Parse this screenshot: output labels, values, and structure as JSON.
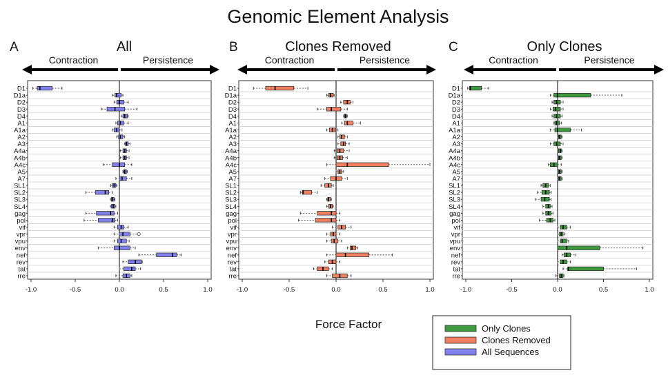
{
  "title": "Genomic Element Analysis",
  "xlabel": "Force Factor",
  "legend": [
    {
      "label": "Only Clones",
      "color": "#3f9a3f"
    },
    {
      "label": "Clones Removed",
      "color": "#f08060"
    },
    {
      "label": "All Sequences",
      "color": "#8080f0"
    }
  ],
  "chart_data": [
    {
      "type": "box",
      "panel": "A",
      "title": "All",
      "left_label": "Contraction",
      "right_label": "Persistence",
      "color": "#8080f0",
      "xlim": [
        -1.0,
        1.0
      ],
      "xticks": [
        "-1.0",
        "-0.5",
        "0.0",
        "0.5",
        "1.0"
      ],
      "grid": true,
      "categories": [
        "D1",
        "D1a",
        "D2",
        "D3",
        "D4",
        "A1",
        "A1a",
        "A2",
        "A3",
        "A4a",
        "A4b",
        "A4c",
        "A5",
        "A7",
        "SL1",
        "SL2",
        "SL3",
        "SL4",
        "gag",
        "pol",
        "vif",
        "vpr",
        "vpu",
        "env",
        "nef",
        "rev",
        "tat",
        "rre"
      ],
      "boxes": [
        {
          "wlo": -0.98,
          "q1": -0.93,
          "med": -0.9,
          "q3": -0.76,
          "whi": -0.65
        },
        {
          "wlo": -0.08,
          "q1": -0.05,
          "med": -0.03,
          "q3": 0.02,
          "whi": 0.04
        },
        {
          "wlo": -0.06,
          "q1": -0.03,
          "med": 0.0,
          "q3": 0.05,
          "whi": 0.1
        },
        {
          "wlo": -0.2,
          "q1": -0.14,
          "med": -0.05,
          "q3": 0.06,
          "whi": 0.2
        },
        {
          "wlo": 0.02,
          "q1": 0.04,
          "med": 0.06,
          "q3": 0.09,
          "whi": 0.1
        },
        {
          "wlo": -0.04,
          "q1": -0.02,
          "med": 0.01,
          "q3": 0.05,
          "whi": 0.1
        },
        {
          "wlo": -0.08,
          "q1": -0.06,
          "med": -0.03,
          "q3": 0.0,
          "whi": 0.03
        },
        {
          "wlo": -0.03,
          "q1": -0.01,
          "med": 0.01,
          "q3": 0.04,
          "whi": 0.06
        },
        {
          "wlo": 0.06,
          "q1": 0.07,
          "med": 0.08,
          "q3": 0.1,
          "whi": 0.12
        },
        {
          "wlo": 0.01,
          "q1": 0.04,
          "med": 0.06,
          "q3": 0.08,
          "whi": 0.11
        },
        {
          "wlo": 0.01,
          "q1": 0.04,
          "med": 0.06,
          "q3": 0.08,
          "whi": 0.11
        },
        {
          "wlo": -0.18,
          "q1": -0.08,
          "med": 0.0,
          "q3": 0.06,
          "whi": 0.14
        },
        {
          "wlo": 0.04,
          "q1": 0.05,
          "med": 0.06,
          "q3": 0.08,
          "whi": 0.09
        },
        {
          "wlo": -0.04,
          "q1": 0.0,
          "med": 0.03,
          "q3": 0.08,
          "whi": 0.14
        },
        {
          "wlo": -0.1,
          "q1": -0.08,
          "med": -0.06,
          "q3": -0.04,
          "whi": -0.03
        },
        {
          "wlo": -0.38,
          "q1": -0.27,
          "med": -0.16,
          "q3": -0.12,
          "whi": -0.08
        },
        {
          "wlo": -0.1,
          "q1": -0.09,
          "med": -0.08,
          "q3": -0.06,
          "whi": -0.05
        },
        {
          "wlo": -0.1,
          "q1": -0.09,
          "med": -0.07,
          "q3": -0.05,
          "whi": -0.04
        },
        {
          "wlo": -0.38,
          "q1": -0.26,
          "med": -0.1,
          "q3": -0.06,
          "whi": -0.02
        },
        {
          "wlo": -0.4,
          "q1": -0.24,
          "med": -0.08,
          "q3": -0.05,
          "whi": -0.02
        },
        {
          "wlo": -0.06,
          "q1": -0.02,
          "med": 0.02,
          "q3": 0.05,
          "whi": 0.1
        },
        {
          "wlo": -0.06,
          "q1": 0.0,
          "med": 0.04,
          "q3": 0.12,
          "whi": 0.22,
          "outlier": 0.22
        },
        {
          "wlo": -0.06,
          "q1": -0.02,
          "med": 0.02,
          "q3": 0.08,
          "whi": 0.11
        },
        {
          "wlo": -0.24,
          "q1": -0.06,
          "med": 0.0,
          "q3": 0.12,
          "whi": 0.18
        },
        {
          "wlo": 0.22,
          "q1": 0.42,
          "med": 0.6,
          "q3": 0.65,
          "whi": 0.7
        },
        {
          "wlo": 0.04,
          "q1": 0.1,
          "med": 0.18,
          "q3": 0.25,
          "whi": 0.26
        },
        {
          "wlo": 0.0,
          "q1": 0.05,
          "med": 0.14,
          "q3": 0.18,
          "whi": 0.24
        },
        {
          "wlo": -0.04,
          "q1": 0.04,
          "med": 0.08,
          "q3": 0.12,
          "whi": 0.14
        }
      ]
    },
    {
      "type": "box",
      "panel": "B",
      "title": "Clones Removed",
      "left_label": "Contraction",
      "right_label": "Persistence",
      "color": "#f08060",
      "xlim": [
        -1.0,
        1.0
      ],
      "xticks": [
        "-1.0",
        "-0.5",
        "0.0",
        "0.5",
        "1.0"
      ],
      "grid": true,
      "categories": [
        "D1",
        "D1a",
        "D2",
        "D3",
        "D4",
        "A1",
        "A1a",
        "A2",
        "A3",
        "A4a",
        "A4b",
        "A4c",
        "A5",
        "A7",
        "SL1",
        "SL2",
        "SL3",
        "SL4",
        "gag",
        "pol",
        "vif",
        "vpr",
        "vpu",
        "env",
        "nef",
        "rev",
        "tat",
        "rre"
      ],
      "boxes": [
        {
          "wlo": -0.88,
          "q1": -0.75,
          "med": -0.65,
          "q3": -0.45,
          "whi": -0.3
        },
        {
          "wlo": -0.1,
          "q1": -0.08,
          "med": -0.06,
          "q3": -0.03,
          "whi": -0.02
        },
        {
          "wlo": 0.05,
          "q1": 0.08,
          "med": 0.12,
          "q3": 0.15,
          "whi": 0.18
        },
        {
          "wlo": -0.2,
          "q1": -0.1,
          "med": -0.05,
          "q3": 0.05,
          "whi": 0.12
        },
        {
          "wlo": 0.08,
          "q1": 0.09,
          "med": 0.1,
          "q3": 0.11,
          "whi": 0.12
        },
        {
          "wlo": 0.06,
          "q1": 0.09,
          "med": 0.12,
          "q3": 0.18,
          "whi": 0.26
        },
        {
          "wlo": -0.1,
          "q1": -0.07,
          "med": -0.04,
          "q3": -0.01,
          "whi": 0.02
        },
        {
          "wlo": 0.02,
          "q1": 0.04,
          "med": 0.06,
          "q3": 0.09,
          "whi": 0.12
        },
        {
          "wlo": 0.02,
          "q1": 0.05,
          "med": 0.08,
          "q3": 0.1,
          "whi": 0.14
        },
        {
          "wlo": -0.02,
          "q1": 0.01,
          "med": 0.04,
          "q3": 0.08,
          "whi": 0.14
        },
        {
          "wlo": -0.02,
          "q1": 0.01,
          "med": 0.04,
          "q3": 0.07,
          "whi": 0.12
        },
        {
          "wlo": -0.1,
          "q1": 0.0,
          "med": 0.12,
          "q3": 0.56,
          "whi": 1.0
        },
        {
          "wlo": 0.0,
          "q1": 0.02,
          "med": 0.04,
          "q3": 0.06,
          "whi": 0.08
        },
        {
          "wlo": -0.12,
          "q1": -0.06,
          "med": 0.0,
          "q3": 0.06,
          "whi": 0.12
        },
        {
          "wlo": -0.16,
          "q1": -0.12,
          "med": -0.08,
          "q3": -0.05,
          "whi": -0.03
        },
        {
          "wlo": -0.38,
          "q1": -0.36,
          "med": -0.35,
          "q3": -0.26,
          "whi": -0.2
        },
        {
          "wlo": -0.1,
          "q1": -0.09,
          "med": -0.08,
          "q3": -0.06,
          "whi": -0.05
        },
        {
          "wlo": -0.1,
          "q1": -0.08,
          "med": -0.06,
          "q3": -0.04,
          "whi": -0.03
        },
        {
          "wlo": -0.38,
          "q1": -0.2,
          "med": -0.05,
          "q3": 0.0,
          "whi": 0.04
        },
        {
          "wlo": -0.4,
          "q1": -0.22,
          "med": -0.05,
          "q3": 0.0,
          "whi": 0.04
        },
        {
          "wlo": -0.04,
          "q1": 0.02,
          "med": 0.06,
          "q3": 0.1,
          "whi": 0.16
        },
        {
          "wlo": -0.1,
          "q1": -0.06,
          "med": -0.03,
          "q3": 0.0,
          "whi": 0.04
        },
        {
          "wlo": -0.1,
          "q1": -0.05,
          "med": -0.02,
          "q3": 0.02,
          "whi": 0.06
        },
        {
          "wlo": 0.12,
          "q1": 0.15,
          "med": 0.17,
          "q3": 0.21,
          "whi": 0.23
        },
        {
          "wlo": -0.1,
          "q1": 0.0,
          "med": 0.1,
          "q3": 0.35,
          "whi": 0.6
        },
        {
          "wlo": -0.12,
          "q1": -0.08,
          "med": -0.04,
          "q3": 0.0,
          "whi": 0.04
        },
        {
          "wlo": -0.24,
          "q1": -0.2,
          "med": -0.14,
          "q3": -0.08,
          "whi": -0.04
        },
        {
          "wlo": -0.1,
          "q1": -0.04,
          "med": 0.04,
          "q3": 0.12,
          "whi": 0.16
        }
      ]
    },
    {
      "type": "box",
      "panel": "C",
      "title": "Only Clones",
      "left_label": "Contraction",
      "right_label": "Persistence",
      "color": "#3f9a3f",
      "xlim": [
        -1.0,
        1.0
      ],
      "xticks": [
        "-1.0",
        "-0.5",
        "0.0",
        "0.5",
        "1.0"
      ],
      "grid": true,
      "categories": [
        "D1",
        "D1a",
        "D2",
        "D3",
        "D4",
        "A1",
        "A1a",
        "A2",
        "A3",
        "A4a",
        "A4b",
        "A4c",
        "A5",
        "A7",
        "SL1",
        "SL2",
        "SL3",
        "SL4",
        "gag",
        "pol",
        "vif",
        "vpr",
        "vpu",
        "env",
        "nef",
        "rev",
        "tat",
        "rre"
      ],
      "boxes": [
        {
          "wlo": -0.98,
          "q1": -0.96,
          "med": -0.95,
          "q3": -0.83,
          "whi": -0.75
        },
        {
          "wlo": -0.08,
          "q1": -0.04,
          "med": 0.0,
          "q3": 0.36,
          "whi": 0.7
        },
        {
          "wlo": -0.06,
          "q1": -0.04,
          "med": -0.01,
          "q3": 0.03,
          "whi": 0.06
        },
        {
          "wlo": -0.08,
          "q1": -0.05,
          "med": -0.02,
          "q3": 0.03,
          "whi": 0.06
        },
        {
          "wlo": -0.06,
          "q1": -0.04,
          "med": -0.01,
          "q3": 0.03,
          "whi": 0.05
        },
        {
          "wlo": -0.04,
          "q1": -0.03,
          "med": -0.01,
          "q3": 0.02,
          "whi": 0.04
        },
        {
          "wlo": -0.08,
          "q1": -0.03,
          "med": 0.0,
          "q3": 0.14,
          "whi": 0.26
        },
        {
          "wlo": 0.0,
          "q1": 0.01,
          "med": 0.02,
          "q3": 0.04,
          "whi": 0.05
        },
        {
          "wlo": -0.08,
          "q1": -0.04,
          "med": -0.01,
          "q3": 0.03,
          "whi": 0.06
        },
        {
          "wlo": 0.0,
          "q1": 0.01,
          "med": 0.03,
          "q3": 0.04,
          "whi": 0.05
        },
        {
          "wlo": 0.0,
          "q1": 0.01,
          "med": 0.02,
          "q3": 0.04,
          "whi": 0.05
        },
        {
          "wlo": -0.1,
          "q1": -0.08,
          "med": -0.04,
          "q3": 0.0,
          "whi": 0.04
        },
        {
          "wlo": 0.0,
          "q1": 0.01,
          "med": 0.02,
          "q3": 0.04,
          "whi": 0.05
        },
        {
          "wlo": 0.0,
          "q1": 0.01,
          "med": 0.02,
          "q3": 0.04,
          "whi": 0.05
        },
        {
          "wlo": -0.18,
          "q1": -0.16,
          "med": -0.13,
          "q3": -0.1,
          "whi": -0.08
        },
        {
          "wlo": -0.22,
          "q1": -0.17,
          "med": -0.13,
          "q3": -0.09,
          "whi": -0.07
        },
        {
          "wlo": -0.24,
          "q1": -0.18,
          "med": -0.14,
          "q3": -0.09,
          "whi": -0.07
        },
        {
          "wlo": -0.16,
          "q1": -0.13,
          "med": -0.1,
          "q3": -0.08,
          "whi": -0.06
        },
        {
          "wlo": -0.16,
          "q1": -0.13,
          "med": -0.1,
          "q3": -0.07,
          "whi": -0.05
        },
        {
          "wlo": -0.2,
          "q1": -0.12,
          "med": -0.08,
          "q3": -0.05,
          "whi": -0.03
        },
        {
          "wlo": 0.0,
          "q1": 0.03,
          "med": 0.06,
          "q3": 0.1,
          "whi": 0.14
        },
        {
          "wlo": 0.0,
          "q1": 0.02,
          "med": 0.04,
          "q3": 0.06,
          "whi": 0.08
        },
        {
          "wlo": 0.0,
          "q1": 0.03,
          "med": 0.05,
          "q3": 0.1,
          "whi": 0.12
        },
        {
          "wlo": 0.0,
          "q1": 0.0,
          "med": 0.1,
          "q3": 0.46,
          "whi": 0.93
        },
        {
          "wlo": 0.05,
          "q1": 0.07,
          "med": 0.1,
          "q3": 0.14,
          "whi": 0.2
        },
        {
          "wlo": 0.0,
          "q1": 0.03,
          "med": 0.06,
          "q3": 0.1,
          "whi": 0.14
        },
        {
          "wlo": 0.06,
          "q1": 0.11,
          "med": 0.12,
          "q3": 0.5,
          "whi": 0.86
        },
        {
          "wlo": -0.02,
          "q1": 0.02,
          "med": 0.04,
          "q3": 0.06,
          "whi": 0.07
        }
      ]
    }
  ]
}
